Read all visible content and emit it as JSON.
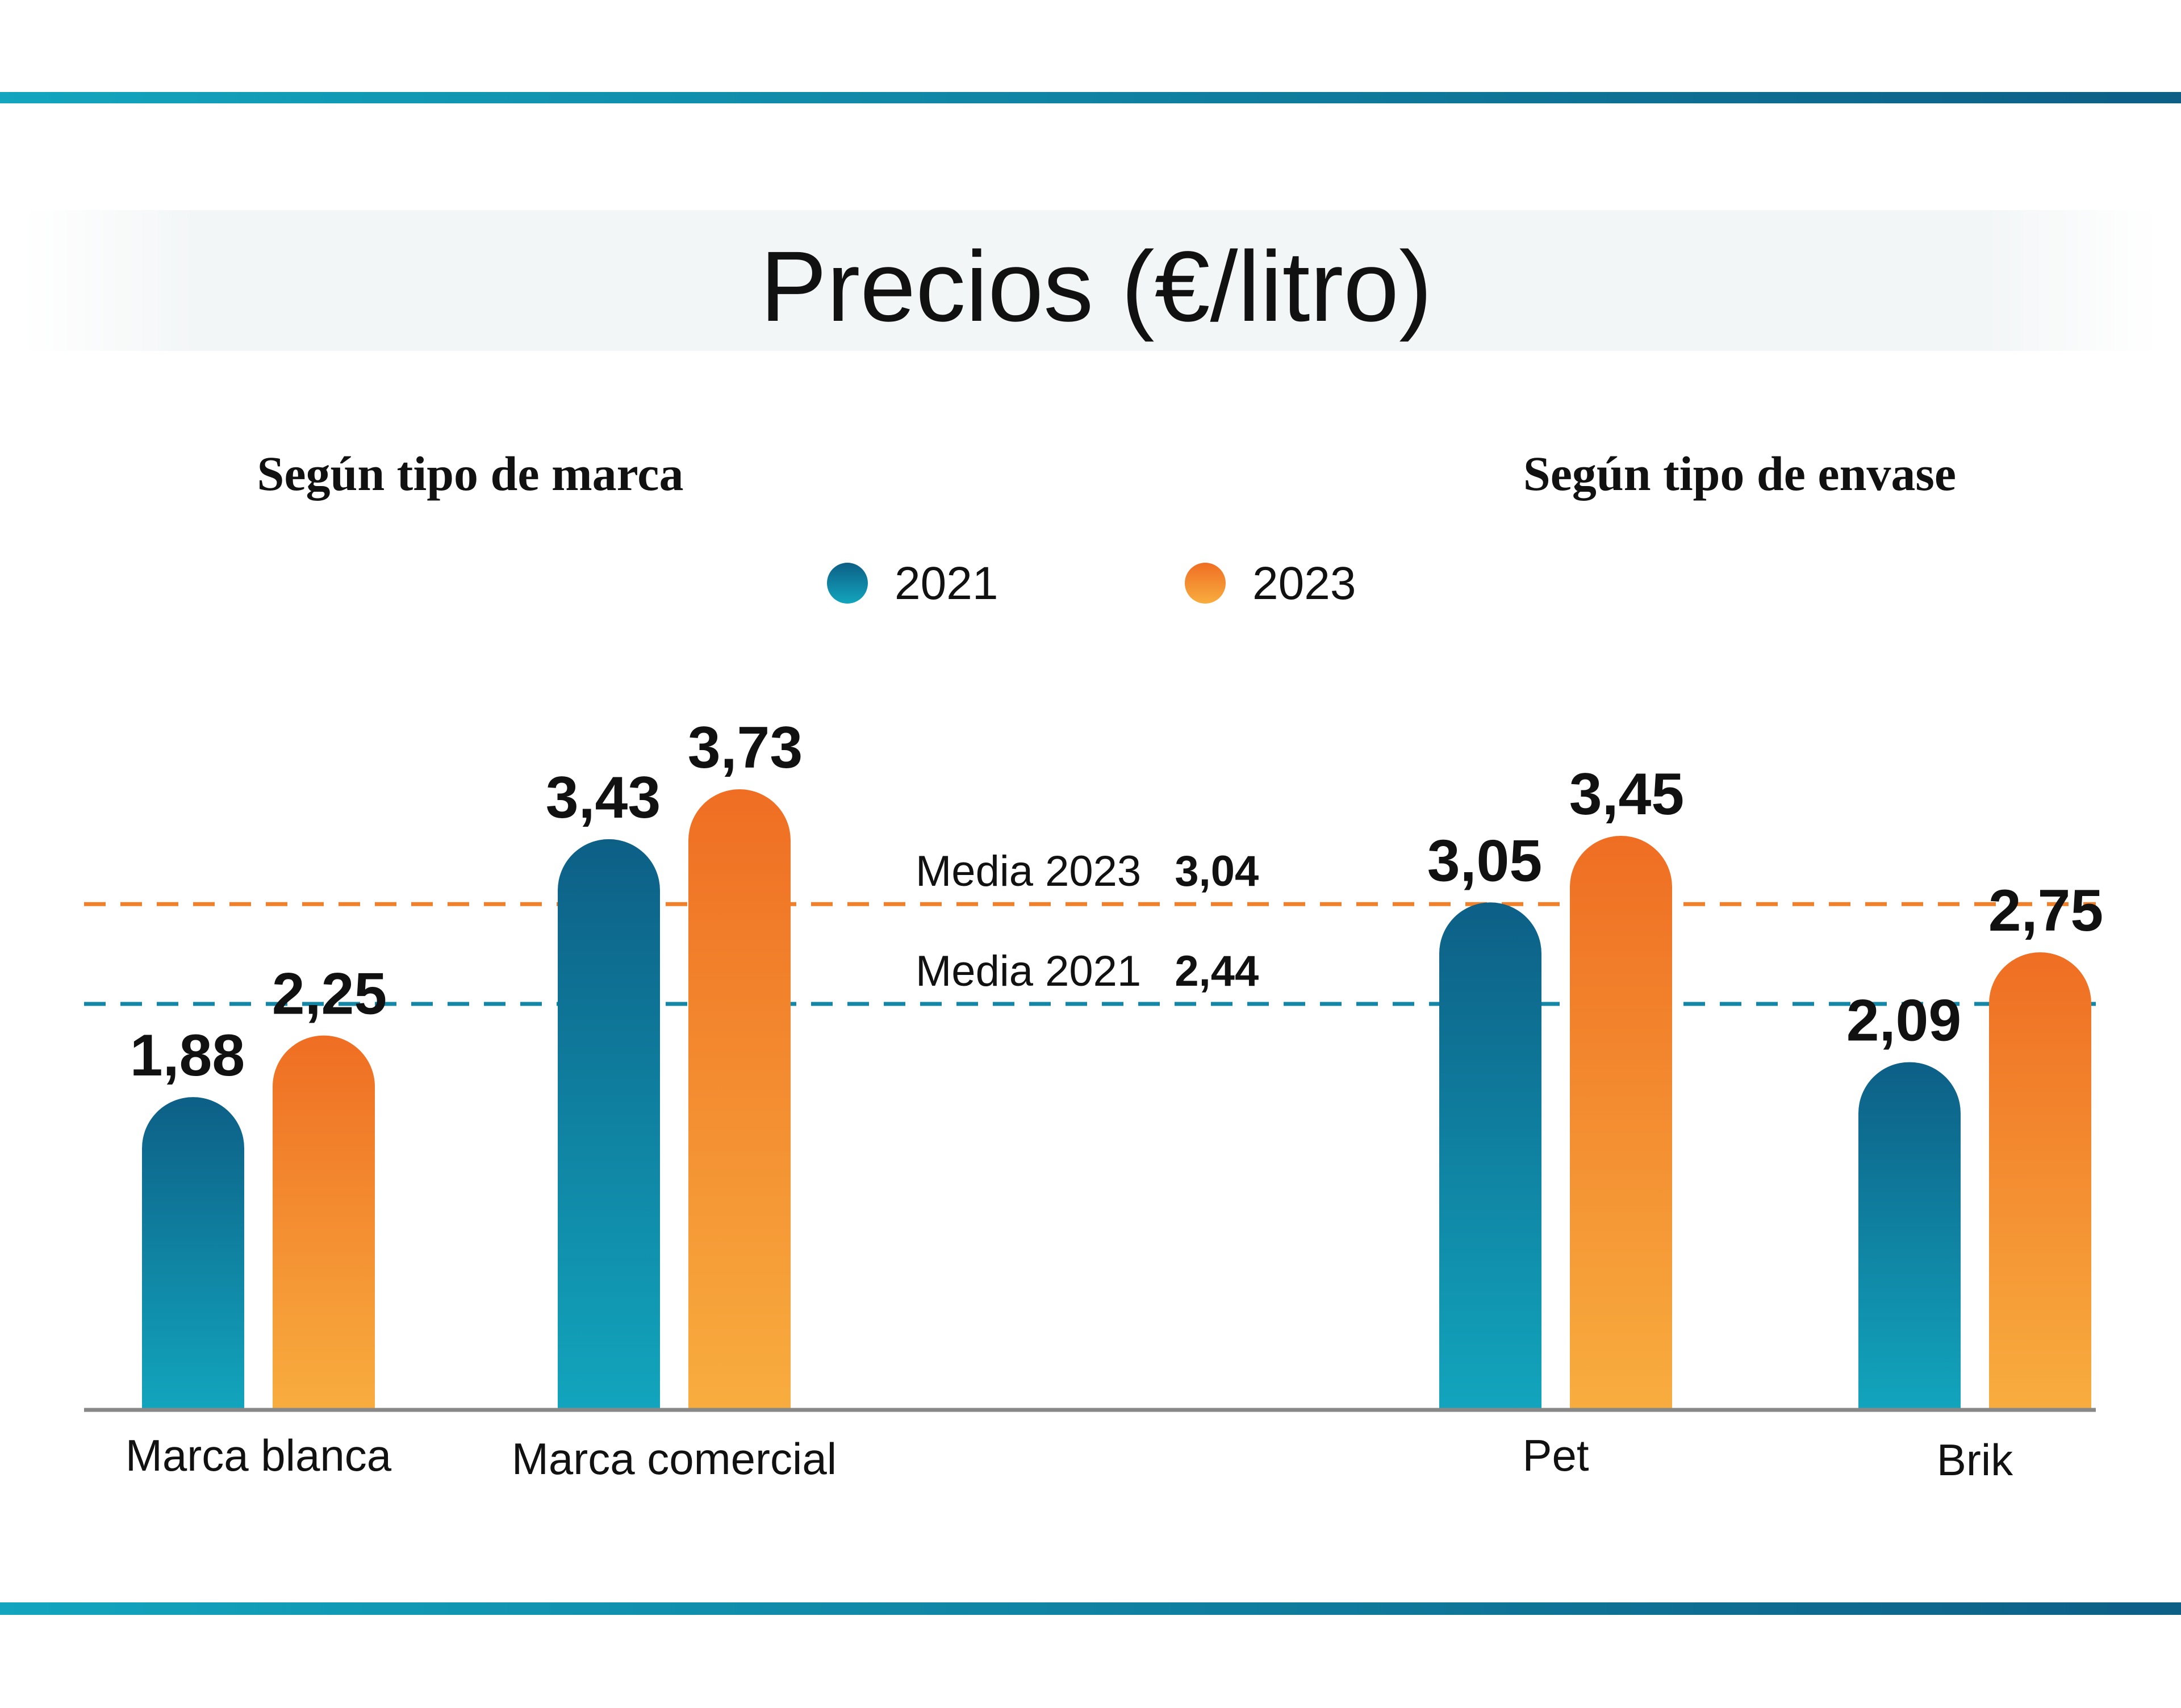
{
  "title": "Precios (€/litro)",
  "colors": {
    "c2021_top": "#0d5f86",
    "c2021_bottom": "#12a5bd",
    "c2023_top": "#ef6e23",
    "c2023_bottom": "#f8ad3f",
    "rule_left": "#12a5bd",
    "rule_right": "#0d5f86",
    "axis": "#888888",
    "text": "#111111"
  },
  "chart_data": {
    "type": "bar",
    "title": "Precios (€/litro)",
    "ylim": [
      0,
      3.73
    ],
    "groups": [
      {
        "heading": "Según tipo de marca",
        "categories": [
          "Marca blanca",
          "Marca comercial"
        ]
      },
      {
        "heading": "Según tipo de envase",
        "categories": [
          "Pet",
          "Brik"
        ]
      }
    ],
    "categories": [
      "Marca blanca",
      "Marca comercial",
      "Pet",
      "Brik"
    ],
    "series": [
      {
        "name": "2021",
        "values": [
          1.88,
          3.43,
          3.05,
          2.09
        ],
        "labels": [
          "1,88",
          "3,43",
          "3,05",
          "2,09"
        ]
      },
      {
        "name": "2023",
        "values": [
          2.25,
          3.73,
          3.45,
          2.75
        ],
        "labels": [
          "2,25",
          "3,73",
          "3,45",
          "2,75"
        ]
      }
    ],
    "reference_lines": [
      {
        "label": "Media 2023",
        "value": 3.04,
        "value_label": "3,04",
        "series": "2023"
      },
      {
        "label": "Media 2021",
        "value": 2.44,
        "value_label": "2,44",
        "series": "2021"
      }
    ]
  }
}
